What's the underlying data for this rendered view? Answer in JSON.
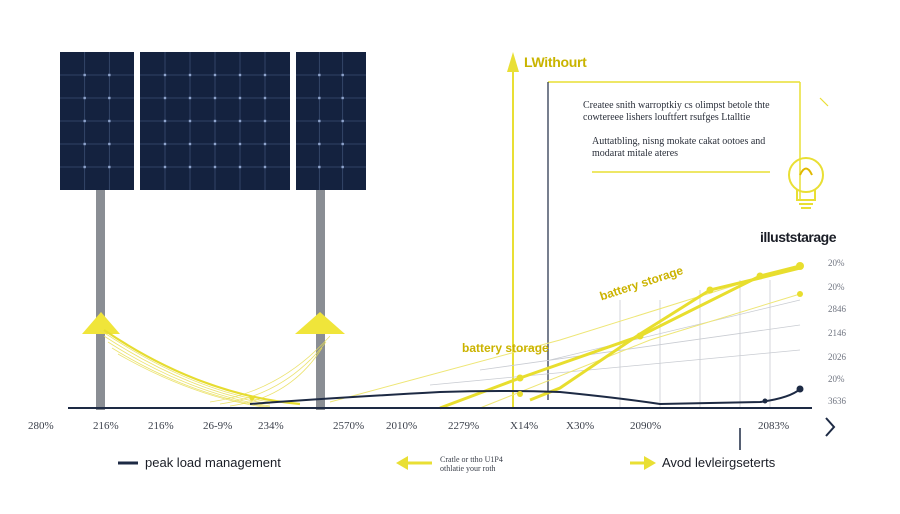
{
  "header": {
    "top_label": "LWithourt",
    "note_lines": [
      "Createe snith warroptkiy cs olimpst betole thte",
      "cowtereee lishers louftfert rsufges Ltalltie"
    ],
    "note2_lines": [
      "Auttatbling, nisng mokate cakat ootoes and",
      "modarat mitale ateres"
    ],
    "illus_label": "illuststarage"
  },
  "labels": {
    "battery_left": "battery storage",
    "battery_diag": "battery storage"
  },
  "x_ticks": [
    "280%",
    "216%",
    "216%",
    "26-9%",
    "234%",
    "2570%",
    "2010%",
    "2279%",
    "X14%",
    "X30%",
    "2090%",
    "2083%"
  ],
  "right_ticks": [
    "20%",
    "20%",
    "2846",
    "2146",
    "2026",
    "20%",
    "3636"
  ],
  "legend": {
    "peak_label": "peak load management",
    "middle_line1": "Cratle or ttho U1P4",
    "middle_line2": "othlatie your roth",
    "avoid_label": "Avod levleirgseterts"
  },
  "colors": {
    "panel": "#14223f",
    "panel_grid": "#3a4d72",
    "pole": "#8a8e94",
    "yellow": "#ece43a",
    "yellow_dark": "#cdbf00",
    "navy": "#1d2a44"
  }
}
